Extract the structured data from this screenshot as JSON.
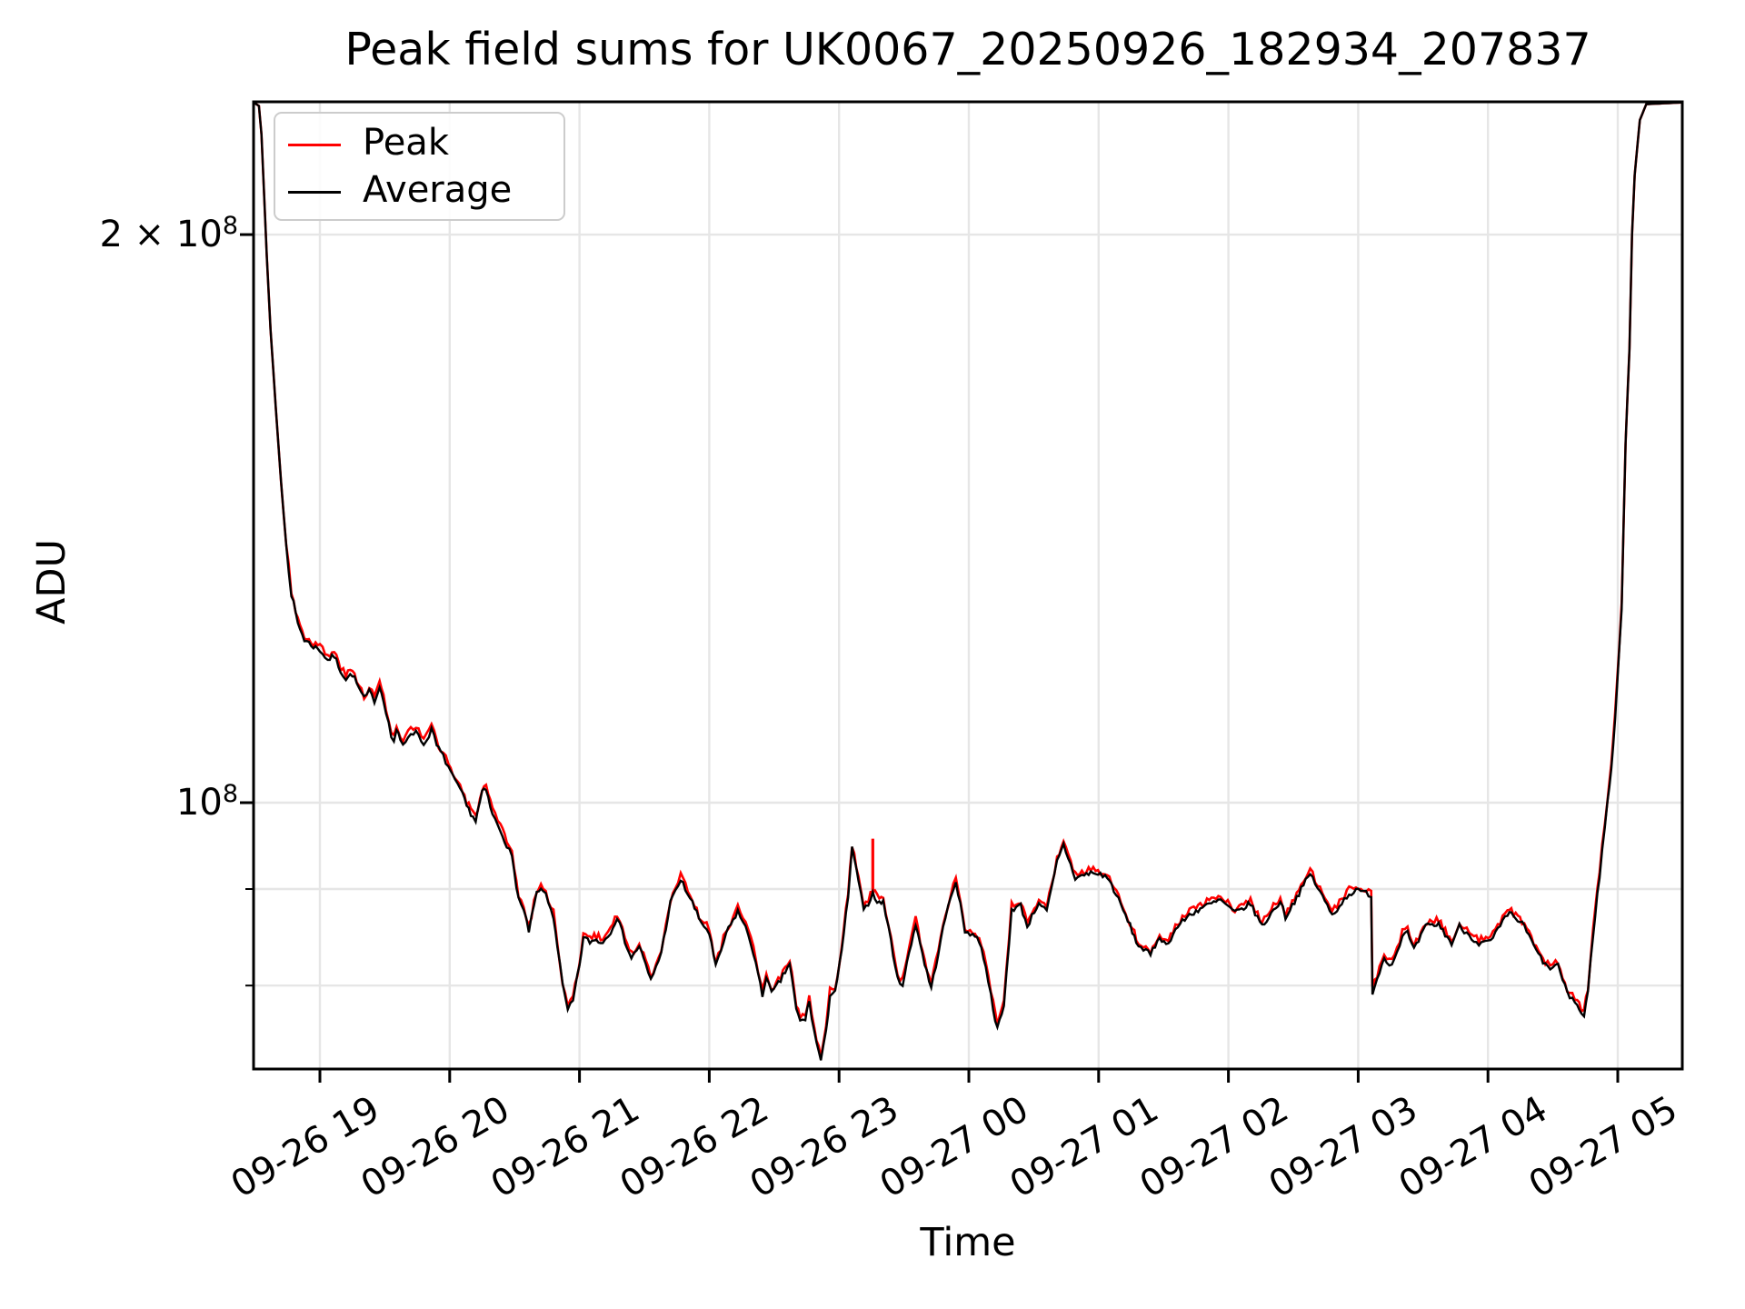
{
  "title": "Peak field sums for UK0067_20250926_182934_207837",
  "chart_data": {
    "type": "line",
    "title": "Peak field sums for UK0067_20250926_182934_207837",
    "xlabel": "Time",
    "ylabel": "ADU",
    "y_scale": "log",
    "grid": true,
    "background": "#ffffff",
    "grid_color": "#e6e6e6",
    "legend": {
      "position": "upper left",
      "entries": [
        {
          "label": "Peak",
          "color": "#ff0000"
        },
        {
          "label": "Average",
          "color": "#000000"
        }
      ]
    },
    "x_ticks": [
      {
        "t": 19,
        "label": "09-26 19"
      },
      {
        "t": 20,
        "label": "09-26 20"
      },
      {
        "t": 21,
        "label": "09-26 21"
      },
      {
        "t": 22,
        "label": "09-26 22"
      },
      {
        "t": 23,
        "label": "09-26 23"
      },
      {
        "t": 24,
        "label": "09-27 00"
      },
      {
        "t": 25,
        "label": "09-27 01"
      },
      {
        "t": 26,
        "label": "09-27 02"
      },
      {
        "t": 27,
        "label": "09-27 03"
      },
      {
        "t": 28,
        "label": "09-27 04"
      },
      {
        "t": 29,
        "label": "09-27 05"
      }
    ],
    "y_ticks_major": [
      {
        "value": 200000000,
        "mantissa": "2 × 10",
        "exponent": "8"
      },
      {
        "value": 100000000,
        "mantissa": "10",
        "exponent": "8"
      }
    ],
    "y_ticks_minor": [
      90000000,
      80000000
    ],
    "xlim_hours_since_0926_0000": [
      18.49,
      29.5
    ],
    "ylim": [
      72300000,
      235500000
    ],
    "value_unit": 10000000,
    "time_note": "t = hours since 2025-09-26 00:00 (24.5 means 09-27 00:30)",
    "series": [
      {
        "name": "Peak",
        "color": "#ff0000",
        "relation": "upper noise envelope of Average, about 0.5% above it in the noisy region",
        "offset_ratio": 1.0045,
        "spike": {
          "t": 23.26,
          "base_value": 89500000,
          "top_value": 95700000
        }
      },
      {
        "name": "Average",
        "color": "#000000",
        "points_t_value_e7": [
          [
            18.49,
            23.5
          ],
          [
            18.53,
            23.4
          ],
          [
            18.55,
            22.6
          ],
          [
            18.57,
            21.0
          ],
          [
            18.59,
            19.5
          ],
          [
            18.62,
            17.8
          ],
          [
            18.66,
            16.2
          ],
          [
            18.7,
            14.8
          ],
          [
            18.74,
            13.7
          ],
          [
            18.78,
            12.9
          ],
          [
            18.83,
            12.45
          ],
          [
            18.88,
            12.2
          ],
          [
            18.95,
            12.1
          ],
          [
            19.0,
            12.05
          ],
          [
            19.06,
            11.9
          ],
          [
            19.11,
            11.96
          ],
          [
            19.16,
            11.75
          ],
          [
            19.2,
            11.63
          ],
          [
            19.25,
            11.7
          ],
          [
            19.3,
            11.5
          ],
          [
            19.34,
            11.35
          ],
          [
            19.38,
            11.45
          ],
          [
            19.42,
            11.33
          ],
          [
            19.46,
            11.52
          ],
          [
            19.49,
            11.35
          ],
          [
            19.55,
            10.84
          ],
          [
            19.57,
            10.78
          ],
          [
            19.59,
            10.93
          ],
          [
            19.62,
            10.78
          ],
          [
            19.64,
            10.72
          ],
          [
            19.7,
            10.9
          ],
          [
            19.76,
            10.88
          ],
          [
            19.8,
            10.72
          ],
          [
            19.86,
            10.94
          ],
          [
            19.9,
            10.72
          ],
          [
            19.93,
            10.64
          ],
          [
            19.99,
            10.45
          ],
          [
            20.04,
            10.26
          ],
          [
            20.08,
            10.17
          ],
          [
            20.13,
            9.96
          ],
          [
            20.18,
            9.83
          ],
          [
            20.2,
            9.78
          ],
          [
            20.25,
            10.13
          ],
          [
            20.28,
            10.15
          ],
          [
            20.33,
            9.85
          ],
          [
            20.39,
            9.67
          ],
          [
            20.44,
            9.5
          ],
          [
            20.48,
            9.35
          ],
          [
            20.53,
            8.9
          ],
          [
            20.57,
            8.76
          ],
          [
            20.61,
            8.55
          ],
          [
            20.67,
            8.95
          ],
          [
            20.72,
            9.0
          ],
          [
            20.76,
            8.85
          ],
          [
            20.8,
            8.7
          ],
          [
            20.83,
            8.4
          ],
          [
            20.87,
            8.0
          ],
          [
            20.91,
            7.76
          ],
          [
            20.95,
            7.85
          ],
          [
            21.0,
            8.2
          ],
          [
            21.03,
            8.48
          ],
          [
            21.08,
            8.44
          ],
          [
            21.13,
            8.46
          ],
          [
            21.18,
            8.43
          ],
          [
            21.24,
            8.55
          ],
          [
            21.29,
            8.7
          ],
          [
            21.35,
            8.45
          ],
          [
            21.4,
            8.27
          ],
          [
            21.46,
            8.4
          ],
          [
            21.51,
            8.2
          ],
          [
            21.55,
            8.05
          ],
          [
            21.63,
            8.33
          ],
          [
            21.7,
            8.85
          ],
          [
            21.78,
            9.1
          ],
          [
            21.87,
            8.85
          ],
          [
            21.92,
            8.68
          ],
          [
            22.0,
            8.53
          ],
          [
            22.05,
            8.18
          ],
          [
            22.13,
            8.52
          ],
          [
            22.22,
            8.76
          ],
          [
            22.3,
            8.52
          ],
          [
            22.34,
            8.33
          ],
          [
            22.41,
            7.9
          ],
          [
            22.44,
            8.1
          ],
          [
            22.48,
            7.92
          ],
          [
            22.55,
            8.05
          ],
          [
            22.62,
            8.22
          ],
          [
            22.67,
            7.77
          ],
          [
            22.7,
            7.66
          ],
          [
            22.74,
            7.68
          ],
          [
            22.77,
            7.85
          ],
          [
            22.81,
            7.55
          ],
          [
            22.86,
            7.3
          ],
          [
            22.9,
            7.55
          ],
          [
            22.93,
            7.92
          ],
          [
            22.97,
            7.95
          ],
          [
            23.02,
            8.33
          ],
          [
            23.07,
            8.92
          ],
          [
            23.1,
            9.45
          ],
          [
            23.15,
            9.1
          ],
          [
            23.19,
            8.75
          ],
          [
            23.26,
            8.95
          ],
          [
            23.31,
            8.84
          ],
          [
            23.34,
            8.87
          ],
          [
            23.4,
            8.45
          ],
          [
            23.45,
            8.06
          ],
          [
            23.49,
            8.02
          ],
          [
            23.59,
            8.63
          ],
          [
            23.66,
            8.22
          ],
          [
            23.71,
            7.97
          ],
          [
            23.82,
            8.7
          ],
          [
            23.9,
            9.1
          ],
          [
            23.97,
            8.55
          ],
          [
            24.03,
            8.52
          ],
          [
            24.08,
            8.45
          ],
          [
            24.13,
            8.2
          ],
          [
            24.17,
            7.9
          ],
          [
            24.22,
            7.58
          ],
          [
            24.27,
            7.8
          ],
          [
            24.33,
            8.78
          ],
          [
            24.4,
            8.82
          ],
          [
            24.45,
            8.6
          ],
          [
            24.54,
            8.86
          ],
          [
            24.6,
            8.75
          ],
          [
            24.68,
            9.3
          ],
          [
            24.73,
            9.5
          ],
          [
            24.82,
            9.12
          ],
          [
            24.94,
            9.18
          ],
          [
            25.05,
            9.15
          ],
          [
            25.1,
            9.05
          ],
          [
            25.26,
            8.55
          ],
          [
            25.29,
            8.43
          ],
          [
            25.4,
            8.3
          ],
          [
            25.47,
            8.5
          ],
          [
            25.52,
            8.4
          ],
          [
            25.61,
            8.6
          ],
          [
            25.7,
            8.72
          ],
          [
            25.8,
            8.8
          ],
          [
            25.94,
            8.88
          ],
          [
            26.05,
            8.74
          ],
          [
            26.17,
            8.84
          ],
          [
            26.26,
            8.6
          ],
          [
            26.4,
            8.87
          ],
          [
            26.44,
            8.7
          ],
          [
            26.63,
            9.17
          ],
          [
            26.8,
            8.72
          ],
          [
            26.93,
            8.95
          ],
          [
            27.0,
            8.98
          ],
          [
            27.08,
            8.95
          ],
          [
            27.1,
            8.93
          ],
          [
            27.11,
            7.93
          ],
          [
            27.2,
            8.28
          ],
          [
            27.26,
            8.2
          ],
          [
            27.34,
            8.5
          ],
          [
            27.38,
            8.53
          ],
          [
            27.43,
            8.35
          ],
          [
            27.52,
            8.6
          ],
          [
            27.62,
            8.62
          ],
          [
            27.72,
            8.42
          ],
          [
            27.78,
            8.6
          ],
          [
            27.93,
            8.42
          ],
          [
            28.02,
            8.44
          ],
          [
            28.15,
            8.72
          ],
          [
            28.18,
            8.73
          ],
          [
            28.28,
            8.6
          ],
          [
            28.37,
            8.35
          ],
          [
            28.46,
            8.17
          ],
          [
            28.54,
            8.2
          ],
          [
            28.61,
            7.92
          ],
          [
            28.67,
            7.85
          ],
          [
            28.72,
            7.73
          ],
          [
            28.74,
            7.71
          ],
          [
            28.77,
            7.94
          ],
          [
            28.81,
            8.52
          ],
          [
            28.86,
            9.15
          ],
          [
            28.92,
            10.0
          ],
          [
            28.95,
            10.4
          ],
          [
            28.98,
            11.1
          ],
          [
            29.01,
            12.0
          ],
          [
            29.03,
            12.7
          ],
          [
            29.06,
            15.5
          ],
          [
            29.09,
            17.4
          ],
          [
            29.11,
            20.0
          ],
          [
            29.13,
            21.5
          ],
          [
            29.17,
            23.0
          ],
          [
            29.22,
            23.45
          ],
          [
            29.5,
            23.5
          ]
        ]
      }
    ]
  }
}
